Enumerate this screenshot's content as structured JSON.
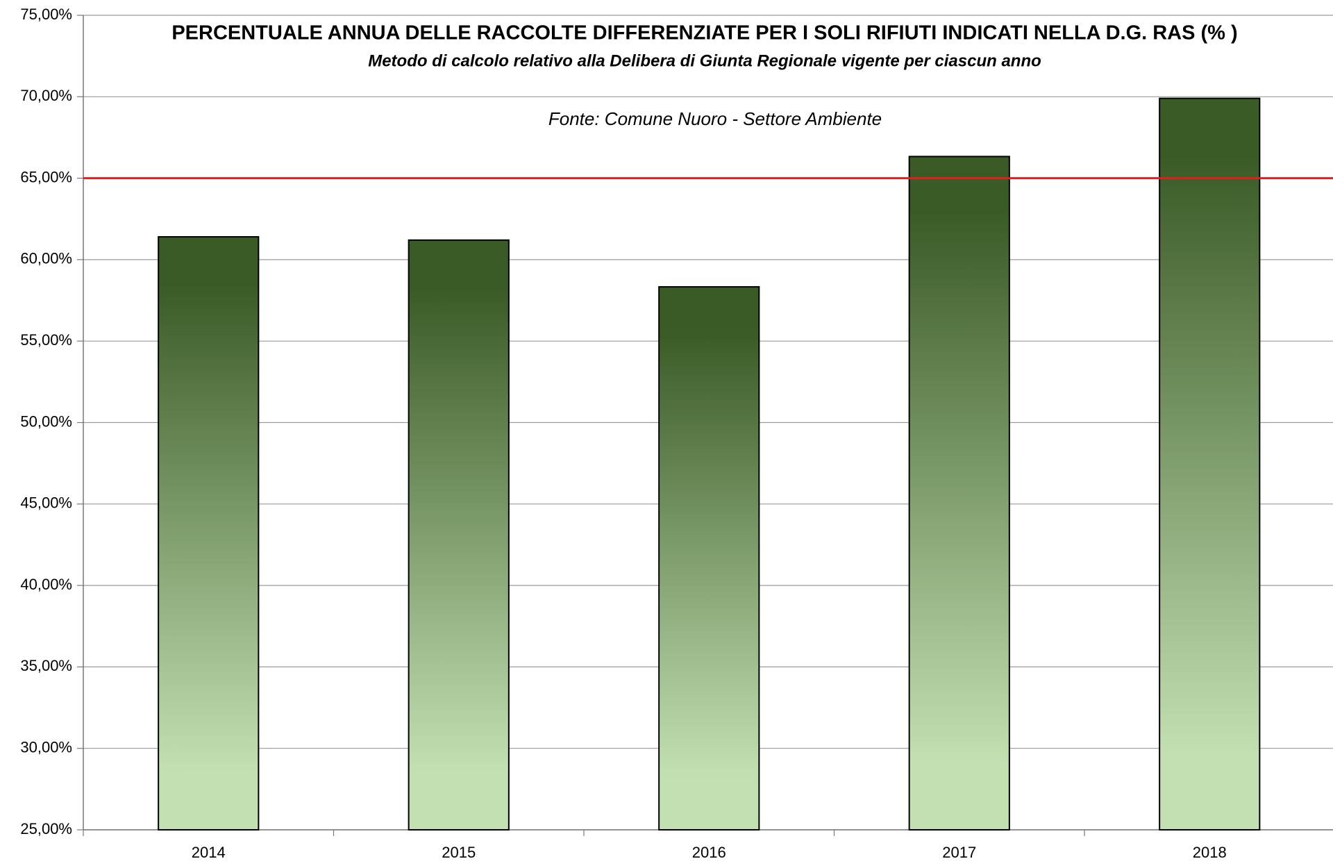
{
  "chart_data": {
    "type": "bar",
    "title": "PERCENTUALE ANNUA DELLE RACCOLTE DIFFERENZIATE PER I SOLI RIFIUTI INDICATI NELLA D.G. RAS (% )",
    "subtitle": "Metodo di calcolo relativo alla Delibera di Giunta Regionale vigente per ciascun anno",
    "annotation": "Fonte: Comune Nuoro - Settore Ambiente",
    "categories": [
      "2014",
      "2015",
      "2016",
      "2017",
      "2018"
    ],
    "values": [
      61.4,
      61.2,
      58.33,
      66.33,
      69.9
    ],
    "color_top": "#3a5a26",
    "color_bottom": "#c3e0b3",
    "reference_line": 65,
    "reference_color": "#e02020",
    "ylim": [
      25,
      75
    ],
    "yticks": [
      {
        "value": 25,
        "label": "25,00%"
      },
      {
        "value": 30,
        "label": "30,00%"
      },
      {
        "value": 35,
        "label": "35,00%"
      },
      {
        "value": 40,
        "label": "40,00%"
      },
      {
        "value": 45,
        "label": "45,00%"
      },
      {
        "value": 50,
        "label": "50,00%"
      },
      {
        "value": 55,
        "label": "55,00%"
      },
      {
        "value": 60,
        "label": "60,00%"
      },
      {
        "value": 65,
        "label": "65,00%"
      },
      {
        "value": 70,
        "label": "70,00%"
      },
      {
        "value": 75,
        "label": "75,00%"
      }
    ],
    "grid": true
  }
}
